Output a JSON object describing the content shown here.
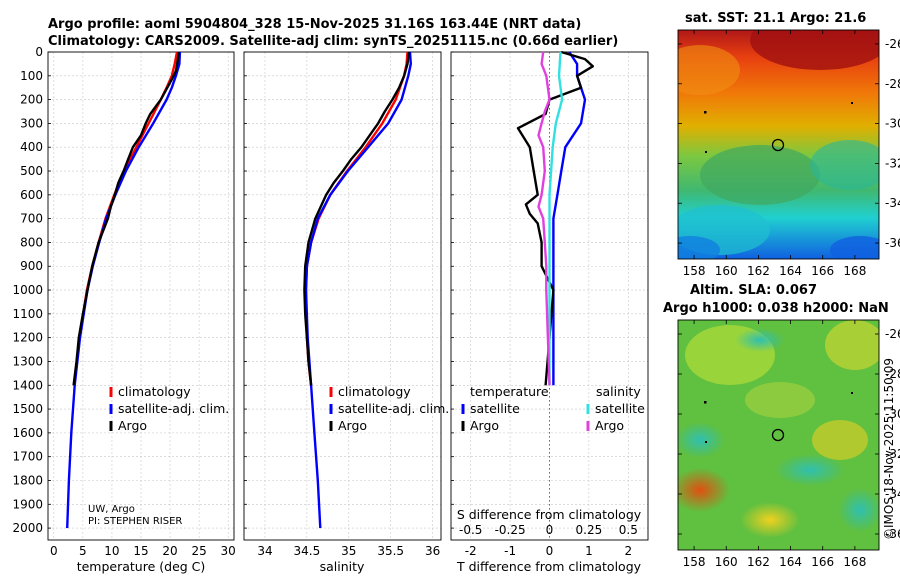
{
  "header": {
    "title_line1": "Argo profile: aoml 5904804_328 15-Nov-2025 31.16S 163.44E (NRT data)",
    "title_line2": "Climatology: CARS2009. Satellite-adj clim: synTS_20251115.nc (0.66d earlier)"
  },
  "credit": {
    "line1": "UW, Argo",
    "line2": "PI: STEPHEN RISER"
  },
  "legend": {
    "climatology": "climatology",
    "satellite": "satellite-adj. clim.",
    "argo": "Argo"
  },
  "diff_legend": {
    "temperature": "temperature",
    "salinity": "salinity",
    "satellite": "satellite",
    "argo": "Argo"
  },
  "colors": {
    "climatology": "#ff0000",
    "satellite": "#0000ff",
    "argo": "#000000",
    "sat_s": "#33e0e0",
    "argo_s": "#e040e0"
  },
  "maps": {
    "sst_title": "sat. SST: 21.1 Argo: 21.6",
    "sla_title1": "Altim. SLA: 0.067",
    "sla_title2": "Argo h1000: 0.038 h2000: NaN",
    "lat_ticks": [
      "-26",
      "-28",
      "-30",
      "-32",
      "-34",
      "-36"
    ],
    "lon_ticks": [
      "158",
      "160",
      "162",
      "164",
      "166",
      "168"
    ],
    "float_position": {
      "lon": 163.44,
      "lat": -31.16
    },
    "stamp": "©IMOS 18-Nov-2025 11:50:09"
  },
  "chart_data": [
    {
      "type": "line",
      "name": "temperature profile",
      "xlabel": "temperature (deg C)",
      "ylabel": "",
      "xlim": [
        -1,
        31
      ],
      "ylim": [
        2050,
        0
      ],
      "xticks": [
        "0",
        "5",
        "10",
        "15",
        "20",
        "25",
        "30"
      ],
      "yticks": [
        "0",
        "100",
        "200",
        "300",
        "400",
        "500",
        "600",
        "700",
        "800",
        "900",
        "1000",
        "1100",
        "1200",
        "1300",
        "1400",
        "1500",
        "1600",
        "1700",
        "1800",
        "1900",
        "2000"
      ],
      "series": [
        {
          "name": "climatology",
          "depth": [
            0,
            50,
            100,
            150,
            200,
            300,
            400,
            500,
            600,
            700,
            800,
            900,
            1000,
            1200,
            1400
          ],
          "values": [
            21.2,
            20.8,
            20.3,
            19.4,
            18.4,
            16.3,
            14.2,
            12.1,
            10.4,
            8.9,
            7.7,
            6.6,
            5.7,
            4.4,
            3.5
          ]
        },
        {
          "name": "satellite-adj. clim.",
          "depth": [
            0,
            50,
            100,
            150,
            200,
            300,
            400,
            500,
            600,
            700,
            800,
            900,
            1000,
            1200,
            1400,
            1600,
            1800,
            2000
          ],
          "values": [
            21.7,
            21.6,
            21.0,
            20.3,
            19.4,
            17.1,
            14.6,
            12.4,
            10.6,
            9.0,
            7.8,
            6.7,
            5.8,
            4.5,
            3.6,
            3.0,
            2.6,
            2.3
          ]
        },
        {
          "name": "Argo",
          "depth": [
            0,
            40,
            80,
            120,
            160,
            200,
            260,
            300,
            350,
            400,
            450,
            500,
            550,
            600,
            650,
            700,
            800,
            900,
            1000,
            1100,
            1200,
            1300,
            1400
          ],
          "values": [
            21.5,
            21.3,
            21.0,
            20.2,
            19.3,
            18.4,
            16.6,
            15.8,
            15.0,
            13.6,
            12.8,
            12.0,
            11.1,
            10.5,
            9.8,
            9.3,
            7.7,
            6.6,
            5.8,
            5.0,
            4.3,
            3.9,
            3.4
          ]
        }
      ]
    },
    {
      "type": "line",
      "name": "salinity profile",
      "xlabel": "salinity",
      "ylabel": "",
      "xlim": [
        33.75,
        36.1
      ],
      "xticks": [
        "34",
        "34.5",
        "35",
        "35.5",
        "36"
      ],
      "series": [
        {
          "name": "climatology",
          "depth": [
            0,
            50,
            100,
            200,
            300,
            400,
            500,
            600,
            700,
            800,
            900,
            1000,
            1100,
            1200,
            1300,
            1400
          ],
          "values": [
            35.7,
            35.69,
            35.66,
            35.56,
            35.4,
            35.2,
            34.98,
            34.78,
            34.64,
            34.55,
            34.5,
            34.49,
            34.49,
            34.5,
            34.52,
            34.55
          ]
        },
        {
          "name": "satellite-adj. clim.",
          "depth": [
            0,
            50,
            100,
            200,
            300,
            400,
            500,
            600,
            700,
            800,
            900,
            1000,
            1200,
            1400,
            1600,
            1800,
            2000
          ],
          "values": [
            35.73,
            35.74,
            35.71,
            35.63,
            35.47,
            35.23,
            34.99,
            34.78,
            34.63,
            34.55,
            34.5,
            34.49,
            34.51,
            34.55,
            34.59,
            34.63,
            34.66
          ]
        },
        {
          "name": "Argo",
          "depth": [
            0,
            50,
            100,
            150,
            200,
            250,
            300,
            350,
            400,
            450,
            500,
            550,
            600,
            700,
            800,
            900,
            1000,
            1100,
            1200,
            1300,
            1400
          ],
          "values": [
            35.72,
            35.7,
            35.66,
            35.6,
            35.52,
            35.43,
            35.35,
            35.25,
            35.15,
            35.03,
            34.93,
            34.82,
            34.73,
            34.6,
            34.52,
            34.48,
            34.47,
            34.48,
            34.5,
            34.52,
            34.55
          ]
        }
      ]
    },
    {
      "type": "line",
      "name": "difference from climatology",
      "xlabel": "T difference from climatology",
      "xlabel2": "S difference from climatology",
      "xlim": [
        -2.5,
        2.5
      ],
      "xticks": [
        "-2",
        "-1",
        "0",
        "1",
        "2"
      ],
      "xticks2": [
        "-0.5",
        "-0.25",
        "0",
        "0.25",
        "0.5"
      ],
      "series": [
        {
          "name": "T satellite",
          "depth": [
            0,
            50,
            100,
            200,
            300,
            400,
            500,
            600,
            700,
            800,
            900,
            1000,
            1200,
            1400
          ],
          "values": [
            0.5,
            0.7,
            0.7,
            0.9,
            0.8,
            0.4,
            0.3,
            0.2,
            0.1,
            0.1,
            0.1,
            0.1,
            0.1,
            0.1
          ]
        },
        {
          "name": "T Argo",
          "depth": [
            0,
            30,
            60,
            100,
            150,
            200,
            260,
            320,
            400,
            500,
            600,
            640,
            680,
            720,
            800,
            900,
            1000,
            1200,
            1400
          ],
          "values": [
            0.3,
            0.9,
            1.1,
            0.7,
            0.8,
            0.0,
            -0.1,
            -0.8,
            -0.5,
            -0.4,
            -0.3,
            -0.6,
            -0.5,
            -0.3,
            -0.2,
            -0.2,
            0.1,
            0.0,
            -0.1
          ]
        },
        {
          "name": "S satellite",
          "depth": [
            0,
            100,
            200,
            300,
            400,
            500,
            600,
            700,
            800,
            1000,
            1200,
            1400
          ],
          "values": [
            0.07,
            0.06,
            0.08,
            0.04,
            0.02,
            0.01,
            0.0,
            0.0,
            0.0,
            0.0,
            0.0,
            0.0
          ]
        },
        {
          "name": "S Argo",
          "depth": [
            0,
            50,
            100,
            150,
            200,
            250,
            300,
            350,
            400,
            500,
            600,
            650,
            700,
            800,
            900,
            1000,
            1200,
            1400
          ],
          "values": [
            -0.04,
            -0.05,
            -0.02,
            -0.01,
            0.0,
            -0.03,
            -0.05,
            -0.07,
            -0.04,
            -0.03,
            -0.05,
            -0.07,
            -0.04,
            -0.03,
            -0.02,
            -0.02,
            -0.01,
            0.0
          ]
        }
      ]
    }
  ]
}
